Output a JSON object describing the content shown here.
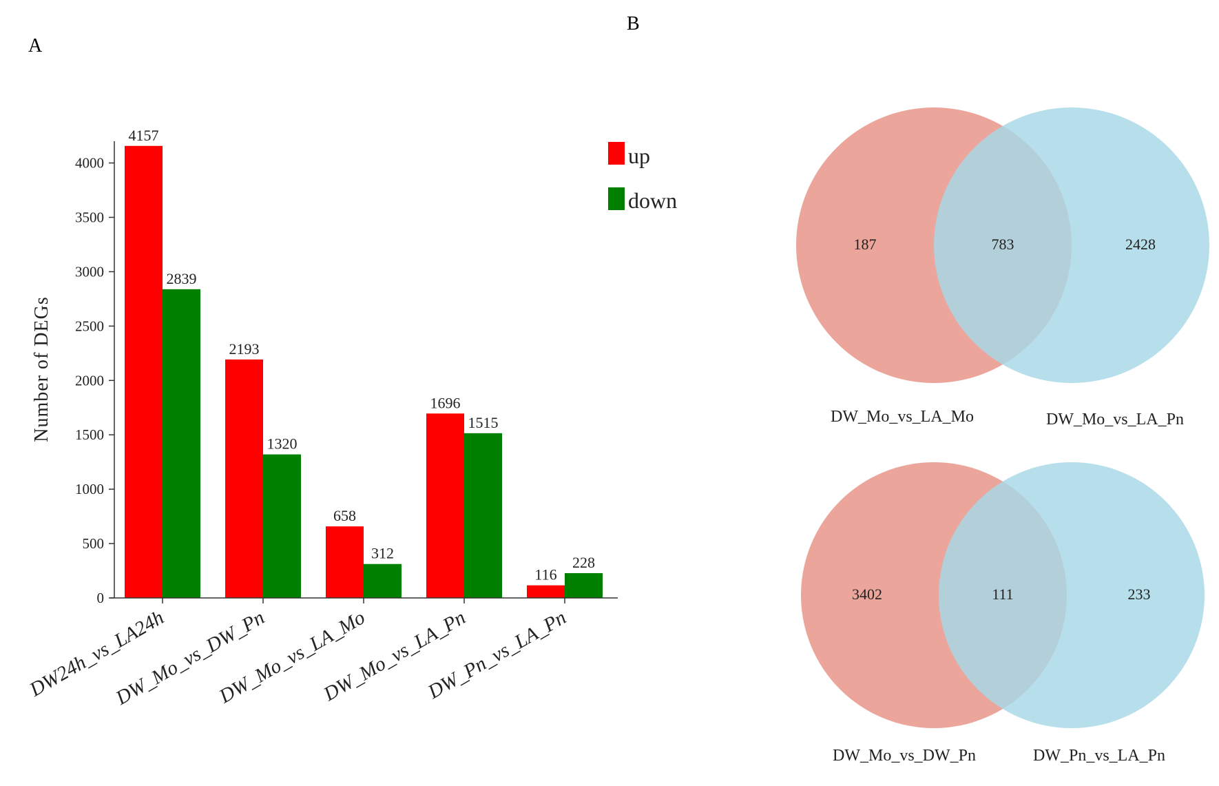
{
  "panels": {
    "a": "A",
    "b": "B"
  },
  "chart_data": [
    {
      "type": "bar",
      "title": "",
      "xlabel": "",
      "ylabel": "Number of DEGs",
      "ylim": [
        0,
        4200
      ],
      "yticks": [
        0,
        500,
        1000,
        1500,
        2000,
        2500,
        3000,
        3500,
        4000
      ],
      "categories": [
        "DW24h_vs_LA24h",
        "DW_Mo_vs_DW_Pn",
        "DW_Mo_vs_LA_Mo",
        "DW_Mo_vs_LA_Pn",
        "DW_Pn_vs_LA_Pn"
      ],
      "series": [
        {
          "name": "up",
          "color": "#ff0000",
          "values": [
            4157,
            2193,
            658,
            1696,
            116
          ]
        },
        {
          "name": "down",
          "color": "#008000",
          "values": [
            2839,
            1320,
            312,
            1515,
            228
          ]
        }
      ],
      "legend_position": "top-right"
    },
    {
      "type": "venn",
      "sets": [
        "DW_Mo_vs_LA_Mo",
        "DW_Mo_vs_LA_Pn"
      ],
      "values": {
        "left_only": "187",
        "overlap": "783",
        "right_only": "2428"
      },
      "colors": [
        "#e8958a",
        "#a6d8e6"
      ]
    },
    {
      "type": "venn",
      "sets": [
        "DW_Mo_vs_DW_Pn",
        "DW_Pn_vs_LA_Pn"
      ],
      "values": {
        "left_only": "3402",
        "overlap": "111",
        "right_only": "233"
      },
      "colors": [
        "#e8958a",
        "#a6d8e6"
      ]
    }
  ]
}
